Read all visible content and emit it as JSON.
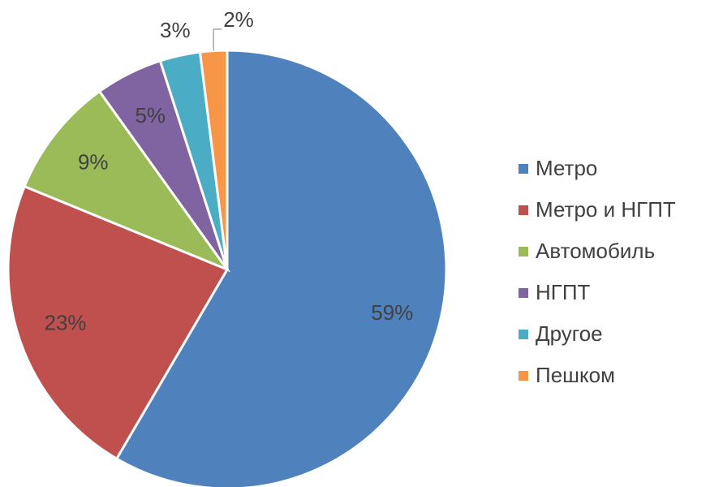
{
  "chart_data": {
    "type": "pie",
    "categories": [
      "Метро",
      "Метро и НГПТ",
      "Автомобиль",
      "НГПТ",
      "Другое",
      "Пешком"
    ],
    "values": [
      59,
      23,
      9,
      5,
      3,
      2
    ],
    "value_labels": [
      "59%",
      "23%",
      "9%",
      "5%",
      "3%",
      "2%"
    ],
    "colors": [
      "#4f81bd",
      "#c0504d",
      "#9bbb59",
      "#8064a2",
      "#4bacc6",
      "#f79646"
    ],
    "legend": "right"
  }
}
